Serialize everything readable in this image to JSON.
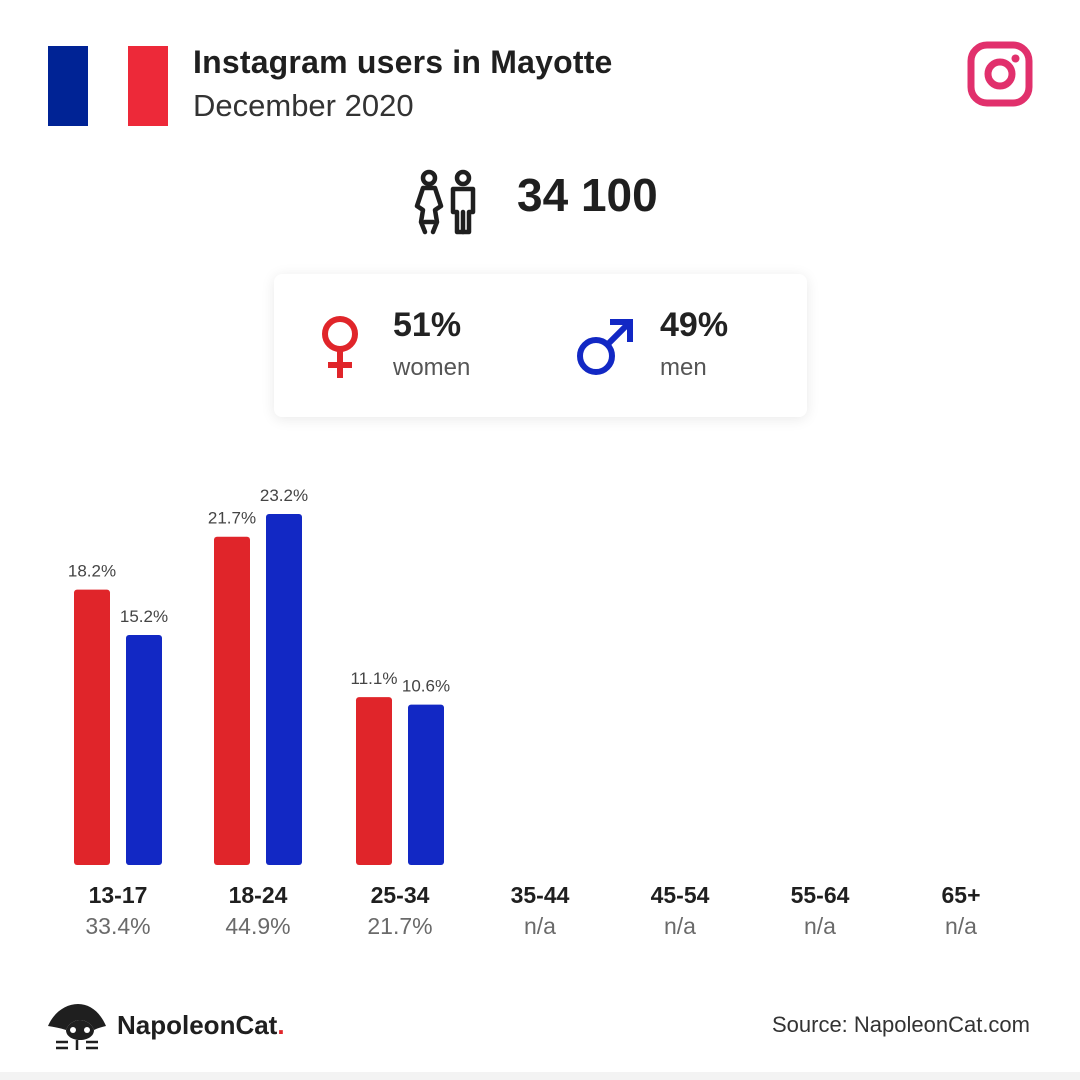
{
  "header": {
    "title": "Instagram users in Mayotte",
    "subtitle": "December 2020",
    "flag_colors": [
      "#002395",
      "#ffffff",
      "#ed2939"
    ],
    "platform_icon": "instagram-icon",
    "platform_color": "#e1306c"
  },
  "total": {
    "icon": "people-icon",
    "value": "34 100"
  },
  "gender": {
    "women": {
      "icon": "female-icon",
      "percent": "51%",
      "label": "women",
      "color": "#e0252a"
    },
    "men": {
      "icon": "male-icon",
      "percent": "49%",
      "label": "men",
      "color": "#1228c4"
    }
  },
  "chart_data": {
    "type": "bar",
    "categories": [
      "13-17",
      "18-24",
      "25-34",
      "35-44",
      "45-54",
      "55-64",
      "65+"
    ],
    "category_totals": [
      "33.4%",
      "44.9%",
      "21.7%",
      "n/a",
      "n/a",
      "n/a",
      "n/a"
    ],
    "series": [
      {
        "values": [
          18.2,
          21.7,
          11.1,
          null,
          null,
          null,
          null
        ],
        "labels": [
          "18.2%",
          "21.7%",
          "11.1%",
          "",
          "",
          "",
          ""
        ],
        "color": "#e0252a"
      },
      {
        "values": [
          15.2,
          23.2,
          10.6,
          null,
          null,
          null,
          null
        ],
        "labels": [
          "15.2%",
          "23.2%",
          "10.6%",
          "",
          "",
          "",
          ""
        ],
        "color": "#1228c4"
      }
    ],
    "ylim": [
      0,
      23.2
    ],
    "grid": false,
    "legend": "none"
  },
  "footer": {
    "brand_name": "NapoleonCat",
    "brand_dot": ".",
    "source": "Source: NapoleonCat.com"
  }
}
